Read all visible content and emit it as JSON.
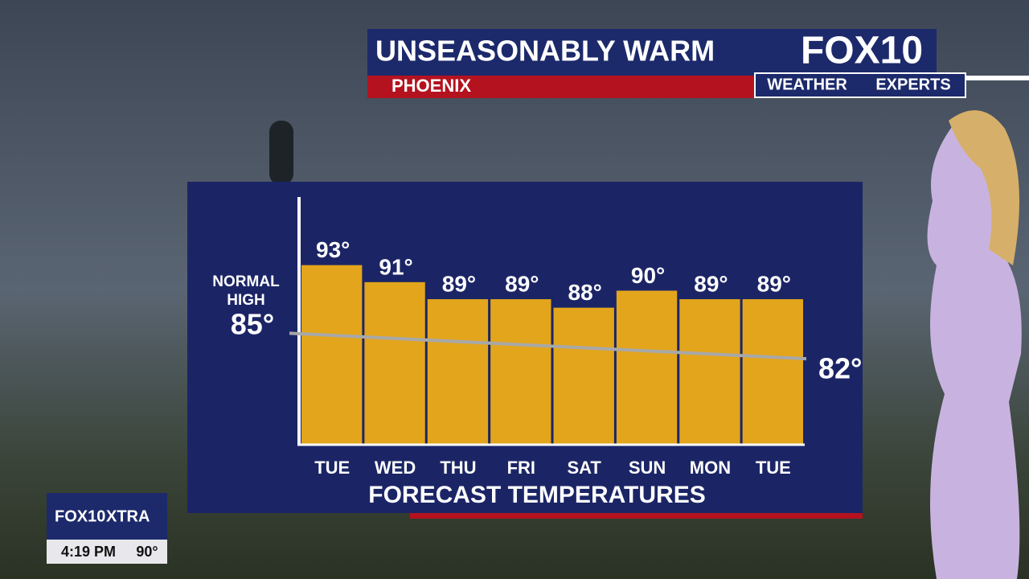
{
  "header": {
    "title": "UNSEASONABLY WARM",
    "subtitle": "PHOENIX",
    "brand": "FOX10",
    "brand_tag": "WEATHER",
    "brand_tag2": "EXPERTS"
  },
  "chart_data": {
    "type": "bar",
    "categories": [
      "TUE",
      "WED",
      "THU",
      "FRI",
      "SAT",
      "SUN",
      "MON",
      "TUE"
    ],
    "values": [
      93,
      91,
      89,
      89,
      88,
      90,
      89,
      89
    ],
    "value_labels": [
      "93°",
      "91°",
      "89°",
      "89°",
      "88°",
      "90°",
      "89°",
      "89°"
    ],
    "color": "#e2a51c",
    "x_label": "FORECAST TEMPERATURES",
    "ylim": [
      72,
      101
    ],
    "normal_high": {
      "label_line1": "NORMAL",
      "label_line2": "HIGH",
      "start": 85,
      "end": 82,
      "start_label": "85°",
      "end_label": "82°",
      "color": "#a8a8a8"
    }
  },
  "badge": {
    "brand": "FOX10",
    "brand2": "XTRA",
    "time": "4:19 PM",
    "temp": "90°"
  }
}
